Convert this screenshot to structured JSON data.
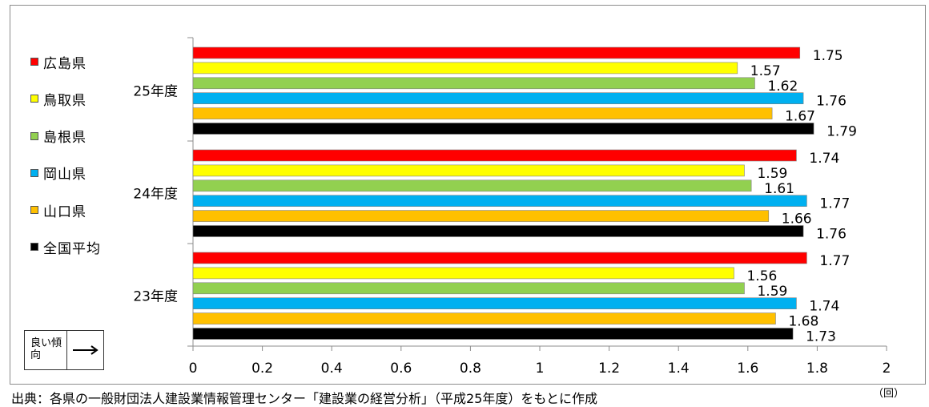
{
  "chart_data": {
    "type": "bar",
    "orientation": "horizontal",
    "groups": [
      "25年度",
      "24年度",
      "23年度"
    ],
    "series": [
      {
        "name": "広島県",
        "color": "#ff0000",
        "values": [
          1.75,
          1.74,
          1.77
        ]
      },
      {
        "name": "鳥取県",
        "color": "#ffff00",
        "values": [
          1.57,
          1.59,
          1.56
        ]
      },
      {
        "name": "島根県",
        "color": "#92d050",
        "values": [
          1.62,
          1.61,
          1.59
        ]
      },
      {
        "name": "岡山県",
        "color": "#00b0f0",
        "values": [
          1.76,
          1.77,
          1.74
        ]
      },
      {
        "name": "山口県",
        "color": "#ffc000",
        "values": [
          1.67,
          1.66,
          1.68
        ]
      },
      {
        "name": "全国平均",
        "color": "#000000",
        "values": [
          1.79,
          1.76,
          1.73
        ]
      }
    ],
    "value_labels": [
      [
        "1.75",
        "1.74",
        "1.77"
      ],
      [
        "1.57",
        "1.59",
        "1.56"
      ],
      [
        "1.62",
        "1.61",
        "1.59"
      ],
      [
        "1.76",
        "1.77",
        "1.74"
      ],
      [
        "1.67",
        "1.66",
        "1.68"
      ],
      [
        "1.79",
        "1.76",
        "1.73"
      ]
    ],
    "x_ticks": [
      "0",
      "0.2",
      "0.4",
      "0.6",
      "0.8",
      "1",
      "1.2",
      "1.4",
      "1.6",
      "1.8",
      "2"
    ],
    "xlim": [
      0,
      2
    ],
    "grid": false,
    "legend_position": "left",
    "unit": "（回）"
  },
  "trend_box": {
    "label": "良い傾向",
    "arrow": "→"
  },
  "source_note": "出典：各県の一般財団法人建設業情報管理センター「建設業の経営分析」（平成25年度）をもとに作成"
}
